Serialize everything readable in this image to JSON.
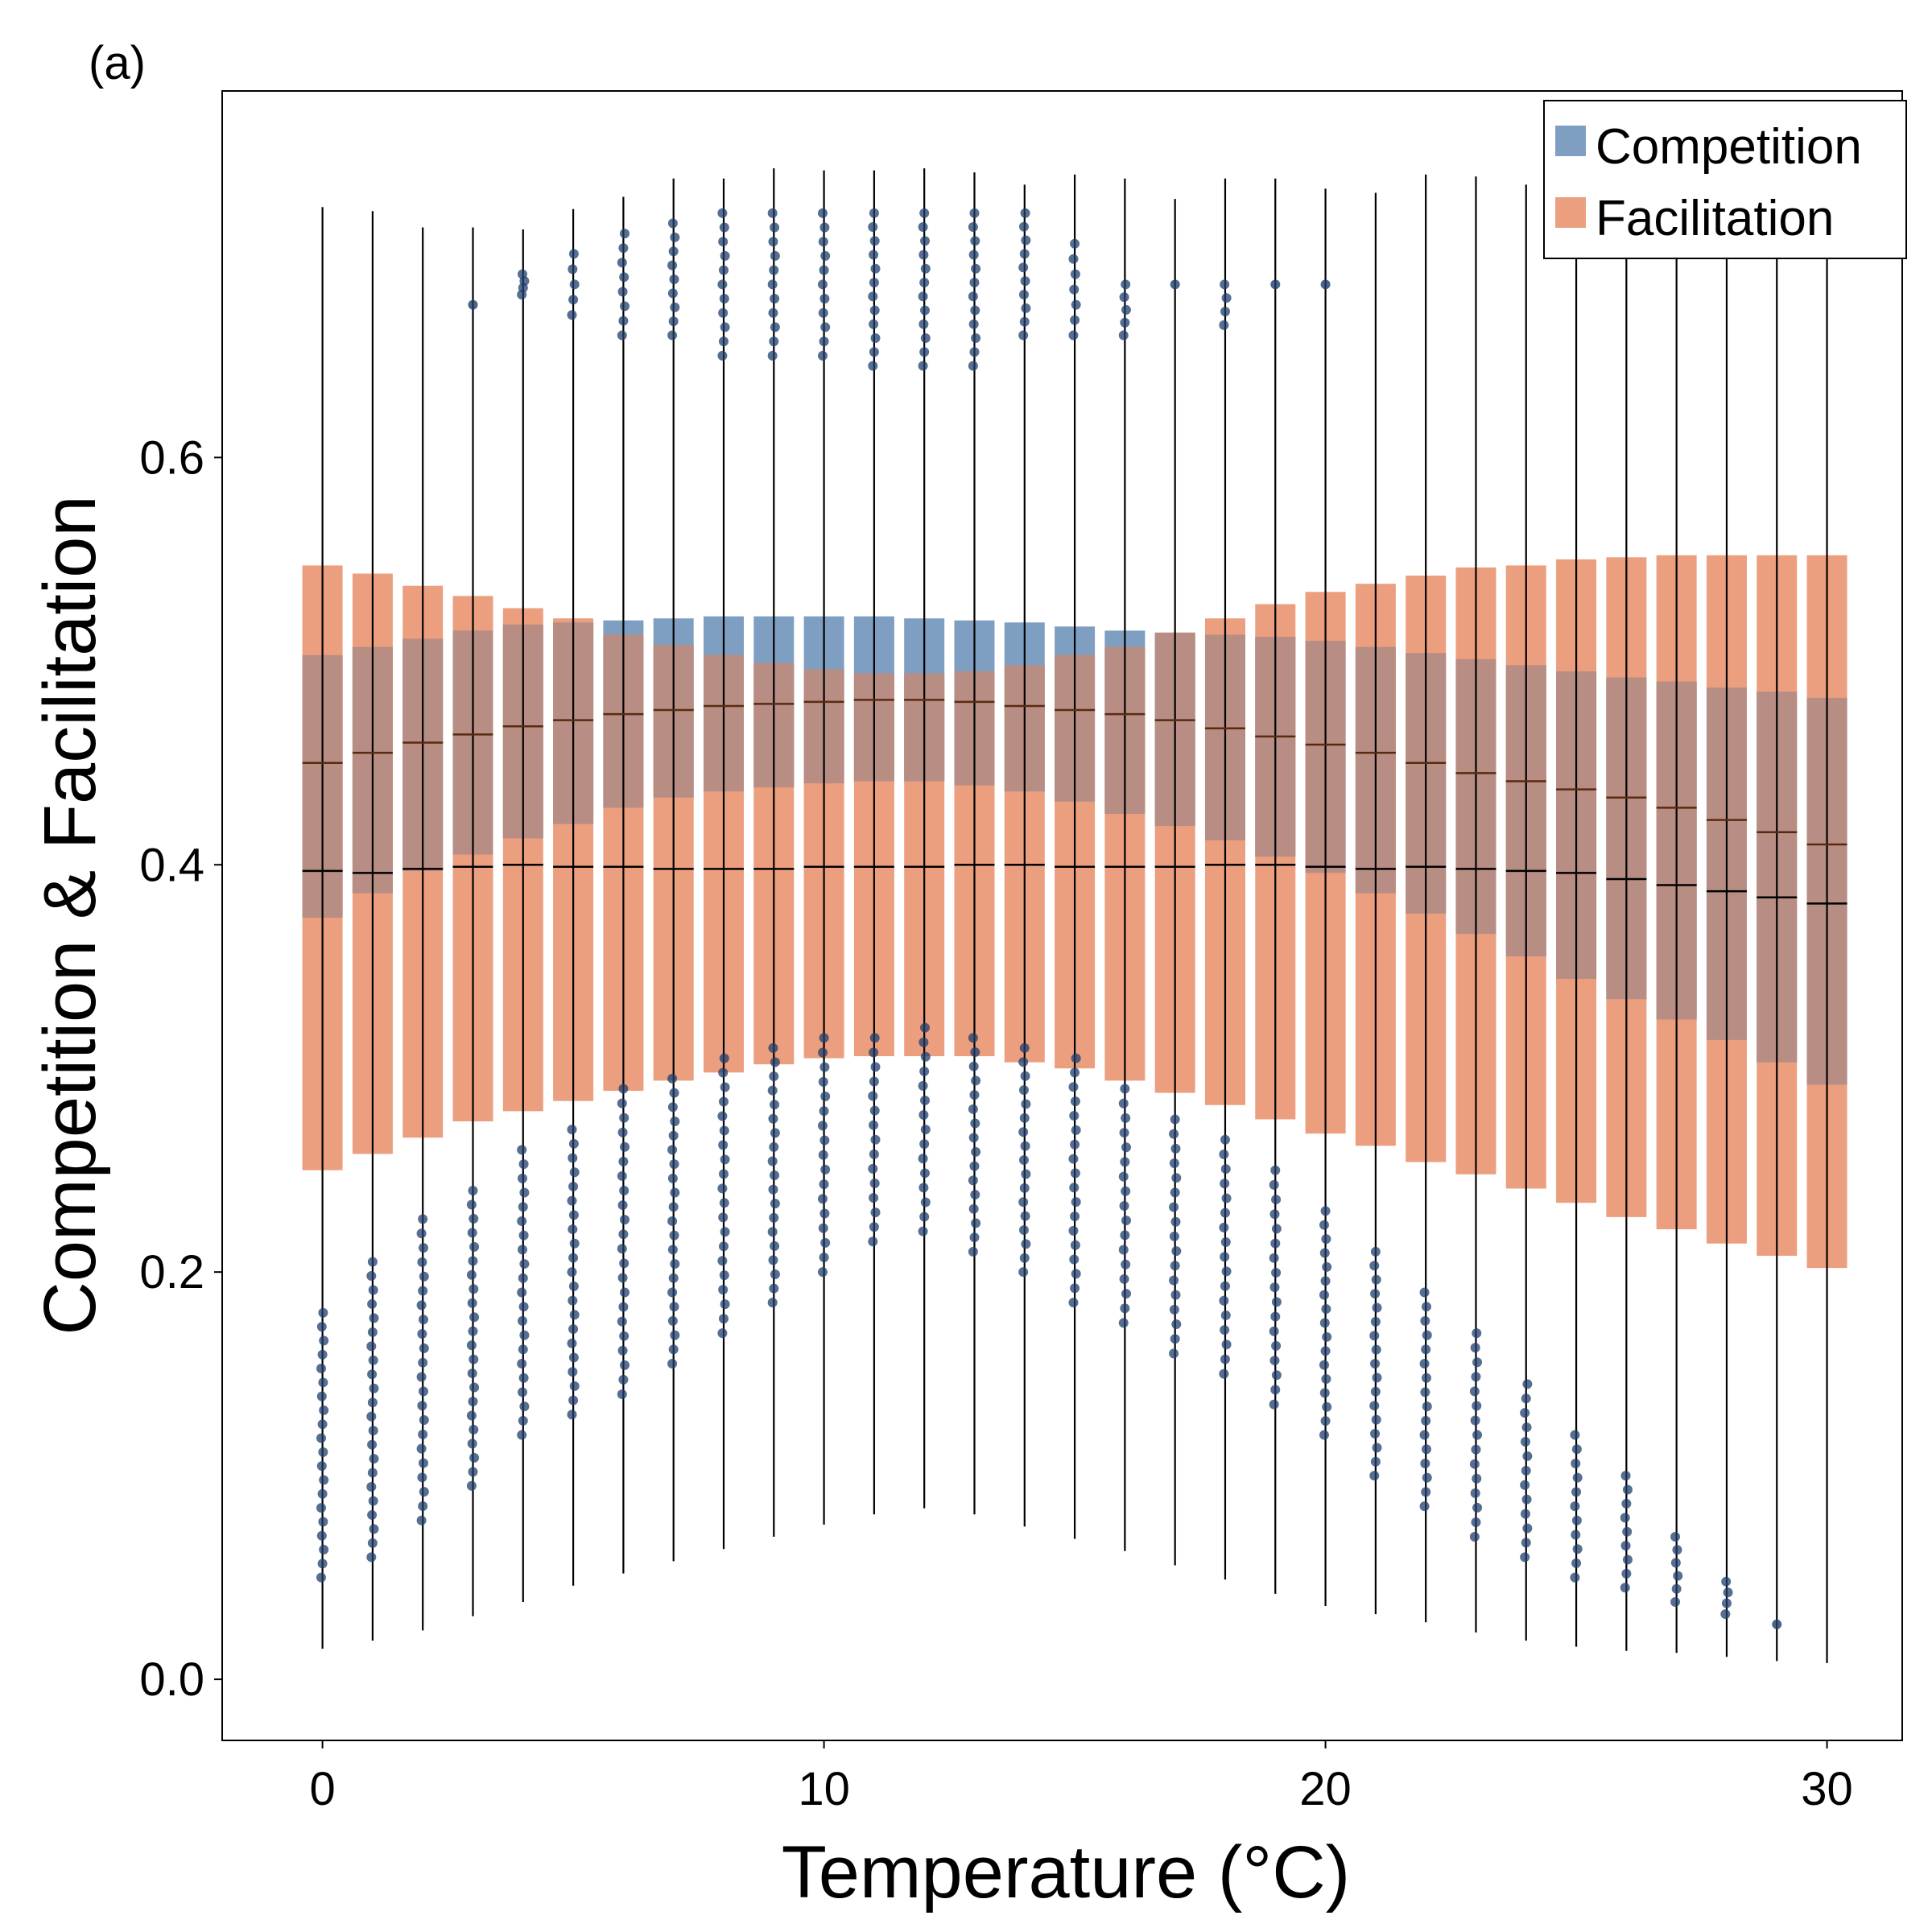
{
  "panel_label": "(a)",
  "colors": {
    "competition_box": "#7f9fc2",
    "facilitation_box": "#ec9f7f",
    "overlap_box": "#b78d84",
    "competition_points": "#1f3d6b",
    "whisker": "#000000",
    "comp_median": "#000000",
    "fac_median": "#5a2a10"
  },
  "chart_data": {
    "type": "box",
    "xlabel": "Temperature (°C)",
    "ylabel": "Competition & Facilitation",
    "xlim": [
      -2,
      31.5
    ],
    "ylim": [
      -0.03,
      0.78
    ],
    "xticks": [
      0,
      10,
      20,
      30
    ],
    "yticks": [
      0.0,
      0.2,
      0.4,
      0.6
    ],
    "x_tick_labels": [
      "0",
      "10",
      "20",
      "30"
    ],
    "y_tick_labels": [
      "0.0",
      "0.2",
      "0.4",
      "0.6"
    ],
    "legend_position": "top-right",
    "x": [
      0,
      1,
      2,
      3,
      4,
      5,
      6,
      7,
      8,
      9,
      10,
      11,
      12,
      13,
      14,
      15,
      16,
      17,
      18,
      19,
      20,
      21,
      22,
      23,
      24,
      25,
      26,
      27,
      28,
      29,
      30
    ],
    "series": [
      {
        "name": "Competition",
        "q1": [
          0.374,
          0.386,
          0.397,
          0.405,
          0.413,
          0.42,
          0.428,
          0.433,
          0.436,
          0.438,
          0.44,
          0.441,
          0.441,
          0.439,
          0.436,
          0.431,
          0.425,
          0.419,
          0.412,
          0.404,
          0.396,
          0.386,
          0.376,
          0.366,
          0.355,
          0.344,
          0.334,
          0.324,
          0.314,
          0.303,
          0.292
        ],
        "median": [
          0.397,
          0.396,
          0.398,
          0.399,
          0.4,
          0.399,
          0.399,
          0.398,
          0.398,
          0.398,
          0.399,
          0.399,
          0.399,
          0.4,
          0.4,
          0.399,
          0.399,
          0.399,
          0.4,
          0.4,
          0.399,
          0.398,
          0.399,
          0.398,
          0.397,
          0.396,
          0.393,
          0.39,
          0.387,
          0.384,
          0.381
        ],
        "q3": [
          0.503,
          0.507,
          0.511,
          0.515,
          0.518,
          0.519,
          0.52,
          0.521,
          0.522,
          0.522,
          0.522,
          0.522,
          0.521,
          0.52,
          0.519,
          0.517,
          0.515,
          0.514,
          0.513,
          0.512,
          0.51,
          0.507,
          0.504,
          0.501,
          0.498,
          0.495,
          0.492,
          0.49,
          0.487,
          0.485,
          0.482
        ],
        "whisker_low": [
          0.015,
          0.019,
          0.024,
          0.031,
          0.038,
          0.046,
          0.052,
          0.058,
          0.064,
          0.07,
          0.076,
          0.081,
          0.084,
          0.081,
          0.075,
          0.069,
          0.063,
          0.056,
          0.049,
          0.042,
          0.036,
          0.032,
          0.028,
          0.023,
          0.019,
          0.016,
          0.014,
          0.013,
          0.011,
          0.009,
          0.008
        ],
        "whisker_high": [
          0.723,
          0.721,
          0.713,
          0.713,
          0.712,
          0.722,
          0.728,
          0.737,
          0.737,
          0.742,
          0.741,
          0.741,
          0.742,
          0.74,
          0.734,
          0.739,
          0.737,
          0.727,
          0.737,
          0.737,
          0.732,
          0.73,
          0.739,
          0.738,
          0.734,
          0.735,
          0.736,
          0.736,
          0.736,
          0.737,
          0.735
        ]
      },
      {
        "name": "Facilitation",
        "q1": [
          0.25,
          0.258,
          0.266,
          0.274,
          0.279,
          0.284,
          0.289,
          0.294,
          0.298,
          0.302,
          0.305,
          0.306,
          0.306,
          0.306,
          0.303,
          0.3,
          0.294,
          0.288,
          0.282,
          0.275,
          0.268,
          0.262,
          0.254,
          0.248,
          0.241,
          0.234,
          0.227,
          0.221,
          0.214,
          0.208,
          0.202
        ],
        "median": [
          0.45,
          0.455,
          0.46,
          0.464,
          0.468,
          0.471,
          0.474,
          0.476,
          0.478,
          0.479,
          0.48,
          0.481,
          0.481,
          0.48,
          0.478,
          0.476,
          0.474,
          0.471,
          0.467,
          0.463,
          0.459,
          0.455,
          0.45,
          0.445,
          0.441,
          0.437,
          0.433,
          0.428,
          0.422,
          0.416,
          0.41
        ],
        "q3": [
          0.547,
          0.543,
          0.537,
          0.532,
          0.526,
          0.521,
          0.513,
          0.508,
          0.503,
          0.499,
          0.496,
          0.494,
          0.494,
          0.495,
          0.498,
          0.503,
          0.507,
          0.514,
          0.521,
          0.528,
          0.534,
          0.538,
          0.542,
          0.546,
          0.547,
          0.55,
          0.551,
          0.552,
          0.552,
          0.552,
          0.552
        ]
      }
    ],
    "outliers": [
      {
        "x": 0,
        "low": [
          0.05,
          0.18
        ],
        "high": []
      },
      {
        "x": 1,
        "low": [
          0.06,
          0.205
        ],
        "high": []
      },
      {
        "x": 2,
        "low": [
          0.078,
          0.226
        ],
        "high": []
      },
      {
        "x": 3,
        "low": [
          0.095,
          0.24
        ],
        "high": [
          0.675
        ]
      },
      {
        "x": 4,
        "low": [
          0.12,
          0.26
        ],
        "high": [
          0.68,
          0.69
        ]
      },
      {
        "x": 5,
        "low": [
          0.13,
          0.27
        ],
        "high": [
          0.67,
          0.7
        ]
      },
      {
        "x": 6,
        "low": [
          0.14,
          0.29
        ],
        "high": [
          0.66,
          0.71
        ]
      },
      {
        "x": 7,
        "low": [
          0.155,
          0.295
        ],
        "high": [
          0.66,
          0.715
        ]
      },
      {
        "x": 8,
        "low": [
          0.17,
          0.305
        ],
        "high": [
          0.65,
          0.72
        ]
      },
      {
        "x": 9,
        "low": [
          0.185,
          0.31
        ],
        "high": [
          0.65,
          0.72
        ]
      },
      {
        "x": 10,
        "low": [
          0.2,
          0.315
        ],
        "high": [
          0.65,
          0.72
        ]
      },
      {
        "x": 11,
        "low": [
          0.215,
          0.315
        ],
        "high": [
          0.645,
          0.72
        ]
      },
      {
        "x": 12,
        "low": [
          0.22,
          0.32
        ],
        "high": [
          0.645,
          0.72
        ]
      },
      {
        "x": 13,
        "low": [
          0.21,
          0.315
        ],
        "high": [
          0.645,
          0.72
        ]
      },
      {
        "x": 14,
        "low": [
          0.2,
          0.31
        ],
        "high": [
          0.66,
          0.72
        ]
      },
      {
        "x": 15,
        "low": [
          0.185,
          0.305
        ],
        "high": [
          0.66,
          0.705
        ]
      },
      {
        "x": 16,
        "low": [
          0.175,
          0.29
        ],
        "high": [
          0.66,
          0.685
        ]
      },
      {
        "x": 17,
        "low": [
          0.16,
          0.275
        ],
        "high": [
          0.685
        ]
      },
      {
        "x": 18,
        "low": [
          0.15,
          0.265
        ],
        "high": [
          0.665,
          0.685
        ]
      },
      {
        "x": 19,
        "low": [
          0.135,
          0.25
        ],
        "high": [
          0.685
        ]
      },
      {
        "x": 20,
        "low": [
          0.12,
          0.23
        ],
        "high": [
          0.685
        ]
      },
      {
        "x": 21,
        "low": [
          0.1,
          0.21
        ],
        "high": []
      },
      {
        "x": 22,
        "low": [
          0.085,
          0.19
        ],
        "high": []
      },
      {
        "x": 23,
        "low": [
          0.07,
          0.17
        ],
        "high": []
      },
      {
        "x": 24,
        "low": [
          0.06,
          0.145
        ],
        "high": []
      },
      {
        "x": 25,
        "low": [
          0.05,
          0.12
        ],
        "high": []
      },
      {
        "x": 26,
        "low": [
          0.045,
          0.1
        ],
        "high": []
      },
      {
        "x": 27,
        "low": [
          0.038,
          0.07
        ],
        "high": []
      },
      {
        "x": 28,
        "low": [
          0.032,
          0.048
        ],
        "high": []
      },
      {
        "x": 29,
        "low": [
          0.027
        ],
        "high": []
      }
    ]
  }
}
